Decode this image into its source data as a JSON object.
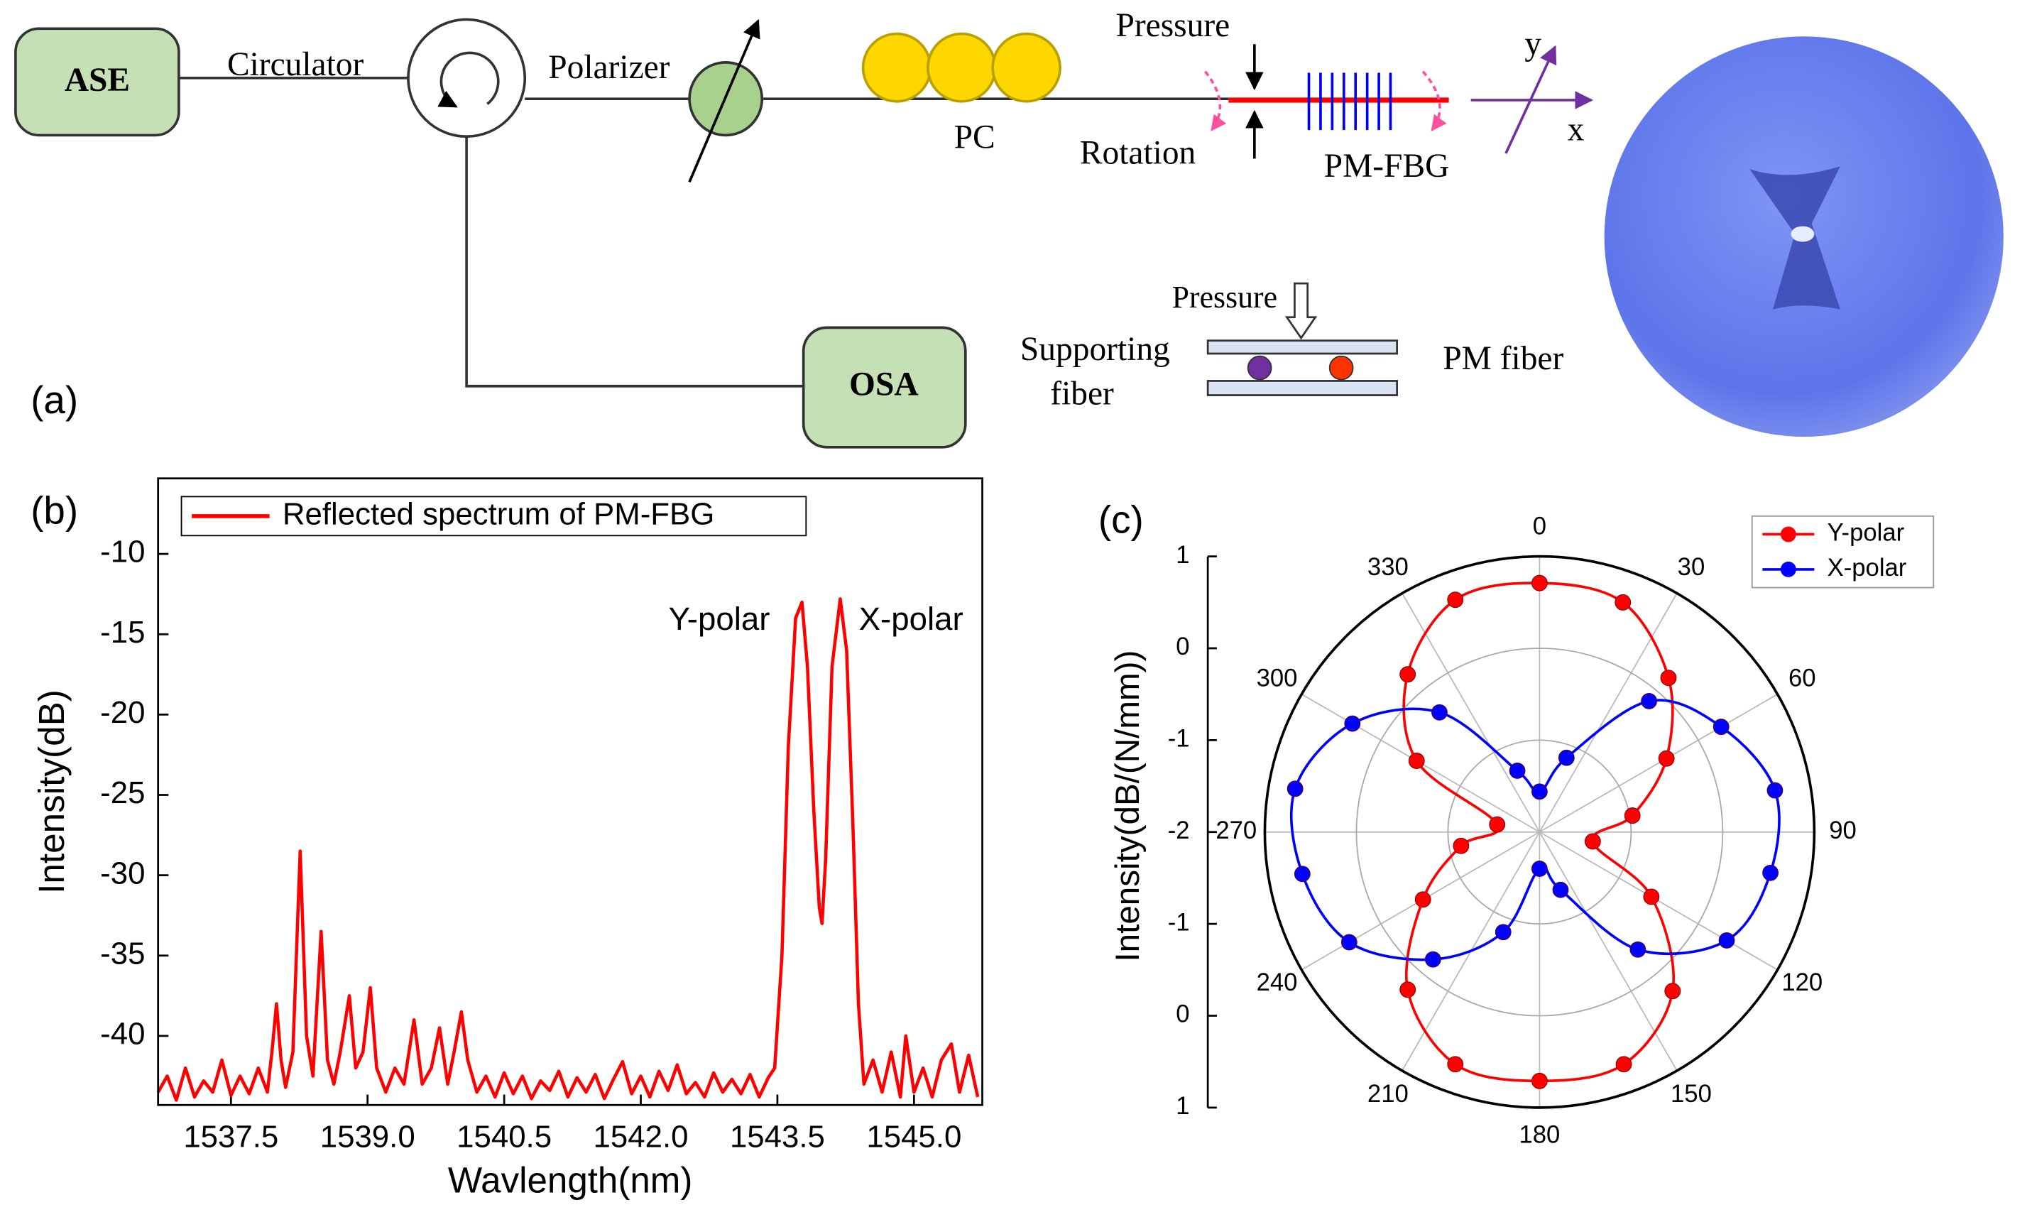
{
  "diagram": {
    "panel": "(a)",
    "ase": "ASE",
    "circulator": "Circulator",
    "polarizer": "Polarizer",
    "pc": "PC",
    "pressure": "Pressure",
    "rotation": "Rotation",
    "pm_fbg": "PM-FBG",
    "axis_y": "y",
    "axis_x": "x",
    "osa": "OSA",
    "inset_pressure": "Pressure",
    "supporting_fiber": [
      "Supporting",
      "fiber"
    ],
    "pm_fiber": "PM fiber"
  },
  "chart_data": [
    {
      "type": "line",
      "panel": "(b)",
      "xlabel": "Wavlength(nm)",
      "ylabel": "Intensity(dB)",
      "annotations": [
        "Y-polar",
        "X-polar"
      ],
      "xlim": [
        1536.7,
        1545.75
      ],
      "ylim": [
        -44.3,
        -5.3
      ],
      "xticks": [
        1537.5,
        {
          "value": 1539,
          "label": "1539.0"
        },
        1540.5,
        {
          "value": 1542,
          "label": "1542.0"
        },
        1543.5,
        {
          "value": 1545,
          "label": "1545.0"
        }
      ],
      "yticks": [
        -40,
        -35,
        -30,
        -25,
        -20,
        -15,
        -10
      ],
      "legend": "upper left",
      "x": [
        1536.7,
        1536.8,
        1536.9,
        1537.0,
        1537.1,
        1537.2,
        1537.3,
        1537.4,
        1537.5,
        1537.6,
        1537.7,
        1537.8,
        1537.9,
        1537.95,
        1538.0,
        1538.05,
        1538.1,
        1538.18,
        1538.26,
        1538.33,
        1538.4,
        1538.49,
        1538.56,
        1538.63,
        1538.7,
        1538.8,
        1538.87,
        1538.95,
        1539.03,
        1539.1,
        1539.2,
        1539.3,
        1539.4,
        1539.51,
        1539.6,
        1539.7,
        1539.79,
        1539.88,
        1539.95,
        1540.03,
        1540.1,
        1540.2,
        1540.3,
        1540.4,
        1540.5,
        1540.6,
        1540.7,
        1540.8,
        1540.9,
        1541.0,
        1541.1,
        1541.2,
        1541.3,
        1541.4,
        1541.5,
        1541.6,
        1541.7,
        1541.8,
        1541.9,
        1542.0,
        1542.1,
        1542.2,
        1542.3,
        1542.4,
        1542.5,
        1542.6,
        1542.7,
        1542.8,
        1542.9,
        1543.0,
        1543.1,
        1543.2,
        1543.3,
        1543.4,
        1543.47,
        1543.55,
        1543.62,
        1543.7,
        1543.77,
        1543.83,
        1543.9,
        1543.96,
        1543.99,
        1544.03,
        1544.1,
        1544.19,
        1544.26,
        1544.33,
        1544.39,
        1544.45,
        1544.55,
        1544.65,
        1544.75,
        1544.85,
        1544.91,
        1545.0,
        1545.1,
        1545.2,
        1545.3,
        1545.41,
        1545.5,
        1545.6,
        1545.7
      ],
      "series": [
        {
          "name": "Reflected spectrum of PM-FBG",
          "color": "#ff0000",
          "values": [
            -43.5,
            -42.5,
            -44,
            -42,
            -43.8,
            -42.8,
            -43.5,
            -41.5,
            -43.7,
            -42.5,
            -43.6,
            -42,
            -43.5,
            -41,
            -38,
            -41.5,
            -43.2,
            -41,
            -28.5,
            -40,
            -42.5,
            -33.5,
            -41.5,
            -43,
            -41,
            -37.5,
            -42,
            -41,
            -37,
            -42,
            -43.5,
            -42,
            -43,
            -39,
            -43,
            -42,
            -39.5,
            -43,
            -41,
            -38.5,
            -41.5,
            -43.5,
            -42.5,
            -43.8,
            -42.3,
            -43.6,
            -42.5,
            -43.9,
            -42.8,
            -43.4,
            -42.2,
            -43.8,
            -42.6,
            -43.5,
            -42.4,
            -43.9,
            -42.7,
            -41.6,
            -43.6,
            -42.5,
            -43.8,
            -42.2,
            -43.4,
            -41.8,
            -43.6,
            -42.9,
            -43.8,
            -42.3,
            -43.5,
            -42.7,
            -43.6,
            -42.4,
            -43.8,
            -42.6,
            -42,
            -35,
            -22,
            -14,
            -13,
            -17,
            -26,
            -32,
            -33,
            -29,
            -17,
            -12.8,
            -16,
            -27,
            -38,
            -43,
            -41.5,
            -43.5,
            -41,
            -43.8,
            -40,
            -43.5,
            -42,
            -43.8,
            -41.5,
            -40.5,
            -43.5,
            -41.2,
            -43.8
          ]
        }
      ]
    },
    {
      "type": "polar",
      "panel": "(c)",
      "ylabel": "Intensity(dB/(N/mm))",
      "rlim": [
        -2,
        1
      ],
      "rticks": [
        -2,
        -1,
        0,
        1
      ],
      "thetaticks": [
        0,
        30,
        60,
        90,
        120,
        150,
        180,
        210,
        240,
        270,
        300,
        330
      ],
      "legend": "upper right",
      "theta": [
        0,
        20,
        40,
        60,
        80,
        100,
        120,
        140,
        160,
        180,
        200,
        220,
        240,
        260,
        280,
        300,
        320,
        340
      ],
      "series": [
        {
          "name": "Y-polar",
          "color": "#ff0000",
          "values": [
            0.71,
            0.66,
            0.19,
            -0.4,
            -0.97,
            -1.41,
            -0.59,
            0.26,
            0.69,
            0.71,
            0.69,
            0.24,
            -0.53,
            -1.13,
            -1.53,
            -0.45,
            0.24,
            0.69
          ]
        },
        {
          "name": "X-polar",
          "color": "#0000ff",
          "values": [
            -1.56,
            -1.14,
            -0.14,
            0.29,
            0.61,
            0.56,
            0.36,
            -0.33,
            -1.33,
            -1.6,
            -0.84,
            -0.19,
            0.4,
            0.63,
            0.71,
            0.36,
            -0.3,
            -1.29
          ]
        }
      ]
    }
  ]
}
